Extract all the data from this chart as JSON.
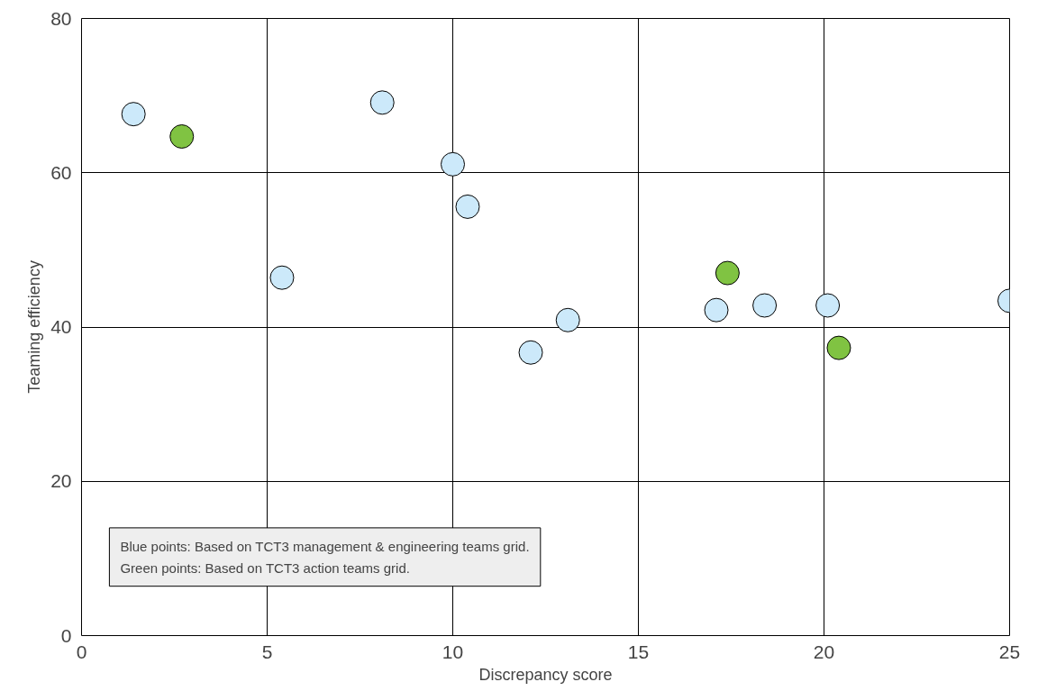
{
  "chart_data": {
    "type": "scatter",
    "xlabel": "Discrepancy score",
    "ylabel": "Teaming efficiency",
    "xlim": [
      0,
      25
    ],
    "ylim": [
      0,
      80
    ],
    "xticks": [
      0,
      5,
      10,
      15,
      20,
      25
    ],
    "yticks": [
      0,
      20,
      40,
      60,
      80
    ],
    "grid": true,
    "marker": "circle",
    "series": [
      {
        "color": "#cce9fa",
        "x": [
          1.4,
          8.1,
          10.0,
          10.4,
          5.4,
          12.1,
          13.1,
          17.1,
          18.4,
          20.1,
          25.0
        ],
        "values": [
          67.6,
          69.1,
          61.1,
          55.6,
          46.4,
          36.7,
          40.9,
          42.2,
          42.8,
          42.8,
          43.4
        ]
      },
      {
        "color": "#80c342",
        "x": [
          2.7,
          17.4,
          20.4
        ],
        "values": [
          64.7,
          47.0,
          37.3
        ]
      }
    ],
    "annotations": [
      "Blue points: Based on TCT3 management & engineering teams grid.",
      "Green points: Based on TCT3 action teams grid."
    ]
  }
}
